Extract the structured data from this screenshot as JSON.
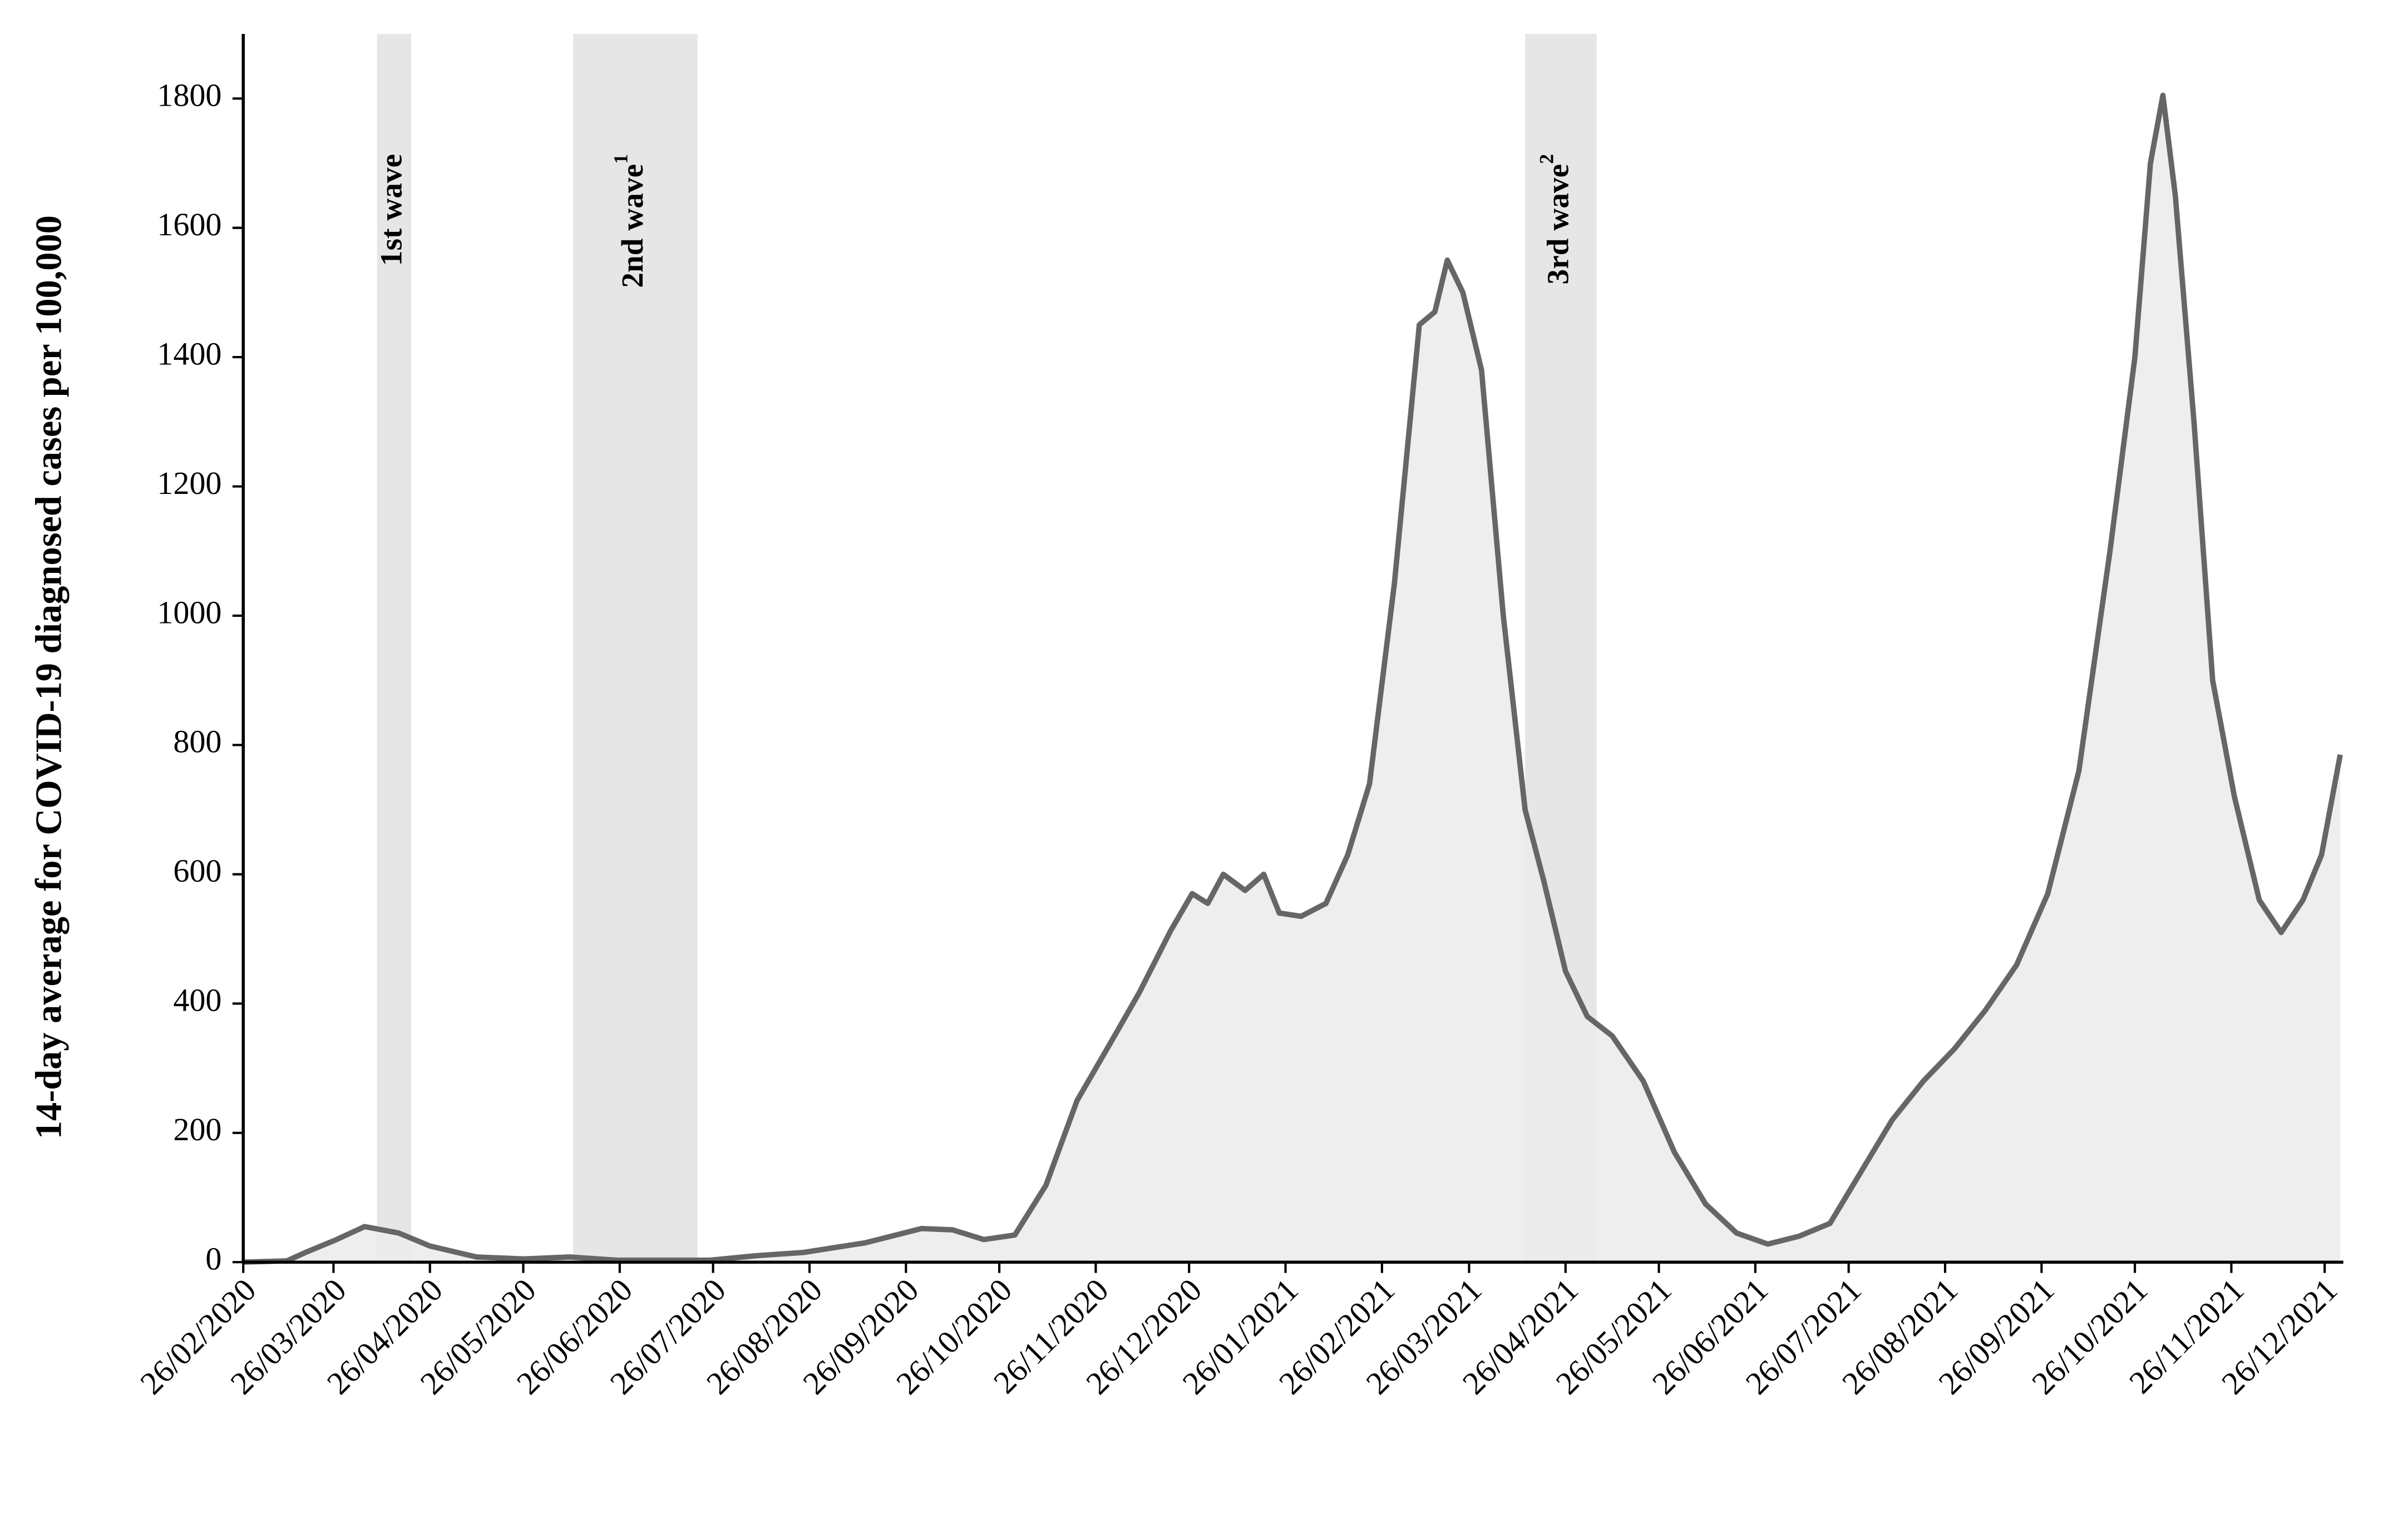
{
  "chart_data": {
    "type": "area",
    "ylabel": "14-day average for COVID-19 diagnosed cases per 100,000",
    "x": [
      "26/02/2020",
      "11/03/2020",
      "17/03/2020",
      "27/03/2020",
      "05/04/2020",
      "16/04/2020",
      "26/04/2020",
      "11/05/2020",
      "26/05/2020",
      "10/06/2020",
      "25/06/2020",
      "25/07/2020",
      "09/08/2020",
      "24/08/2020",
      "13/09/2020",
      "01/10/2020",
      "11/10/2020",
      "21/10/2020",
      "31/10/2020",
      "10/11/2020",
      "20/11/2020",
      "30/11/2020",
      "10/12/2020",
      "20/12/2020",
      "27/12/2020",
      "01/01/2021",
      "06/01/2021",
      "13/01/2021",
      "19/01/2021",
      "24/01/2021",
      "31/01/2021",
      "08/02/2021",
      "15/02/2021",
      "22/02/2021",
      "02/03/2021",
      "10/03/2021",
      "15/03/2021",
      "19/03/2021",
      "24/03/2021",
      "30/03/2021",
      "06/04/2021",
      "13/04/2021",
      "19/04/2021",
      "26/04/2021",
      "03/05/2021",
      "11/05/2021",
      "21/05/2021",
      "31/05/2021",
      "10/06/2021",
      "20/06/2021",
      "30/06/2021",
      "10/07/2021",
      "20/07/2021",
      "30/07/2021",
      "09/08/2021",
      "19/08/2021",
      "29/08/2021",
      "08/09/2021",
      "18/09/2021",
      "28/09/2021",
      "08/10/2021",
      "18/10/2021",
      "26/10/2021",
      "31/10/2021",
      "04/11/2021",
      "08/11/2021",
      "14/11/2021",
      "20/11/2021",
      "27/11/2021",
      "05/12/2021",
      "12/12/2021",
      "19/12/2021",
      "25/12/2021",
      "31/12/2021"
    ],
    "series": [
      {
        "name": "14-day average",
        "color": "#666666",
        "fill": "#ebebeb",
        "values": [
          0,
          2,
          15,
          35,
          55,
          45,
          25,
          8,
          5,
          8,
          3,
          3,
          10,
          15,
          30,
          52,
          50,
          35,
          42,
          119,
          250,
          333,
          417,
          512,
          570,
          555,
          600,
          575,
          600,
          540,
          535,
          555,
          630,
          740,
          1050,
          1450,
          1470,
          1550,
          1500,
          1380,
          1000,
          700,
          590,
          450,
          380,
          350,
          280,
          170,
          90,
          45,
          28,
          40,
          60,
          140,
          220,
          280,
          330,
          390,
          460,
          570,
          760,
          1100,
          1400,
          1700,
          1805,
          1650,
          1300,
          900,
          720,
          560,
          510,
          560,
          630,
          785
        ]
      }
    ],
    "xlim": [
      "26/02/2020",
      "01/01/2022"
    ],
    "xticks": [
      "26/02/2020",
      "26/03/2020",
      "26/04/2020",
      "26/05/2020",
      "26/06/2020",
      "26/07/2020",
      "26/08/2020",
      "26/09/2020",
      "26/10/2020",
      "26/11/2020",
      "26/12/2020",
      "26/01/2021",
      "26/02/2021",
      "26/03/2021",
      "26/04/2021",
      "26/05/2021",
      "26/06/2021",
      "26/07/2021",
      "26/08/2021",
      "26/09/2021",
      "26/10/2021",
      "26/11/2021",
      "26/12/2021"
    ],
    "ylim": [
      0,
      1900
    ],
    "yticks": [
      0,
      200,
      400,
      600,
      800,
      1000,
      1200,
      1400,
      1600,
      1800
    ],
    "bands": [
      {
        "start": "09/04/2020",
        "end": "20/04/2020",
        "label": "1st wave",
        "color": "#e6e6e6"
      },
      {
        "start": "11/06/2020",
        "end": "21/07/2020",
        "label": "2nd wave",
        "sup": "1",
        "color": "#e6e6e6"
      },
      {
        "start": "13/04/2021",
        "end": "06/05/2021",
        "label": "3rd wave",
        "sup": "2",
        "color": "#e6e6e6"
      }
    ]
  }
}
